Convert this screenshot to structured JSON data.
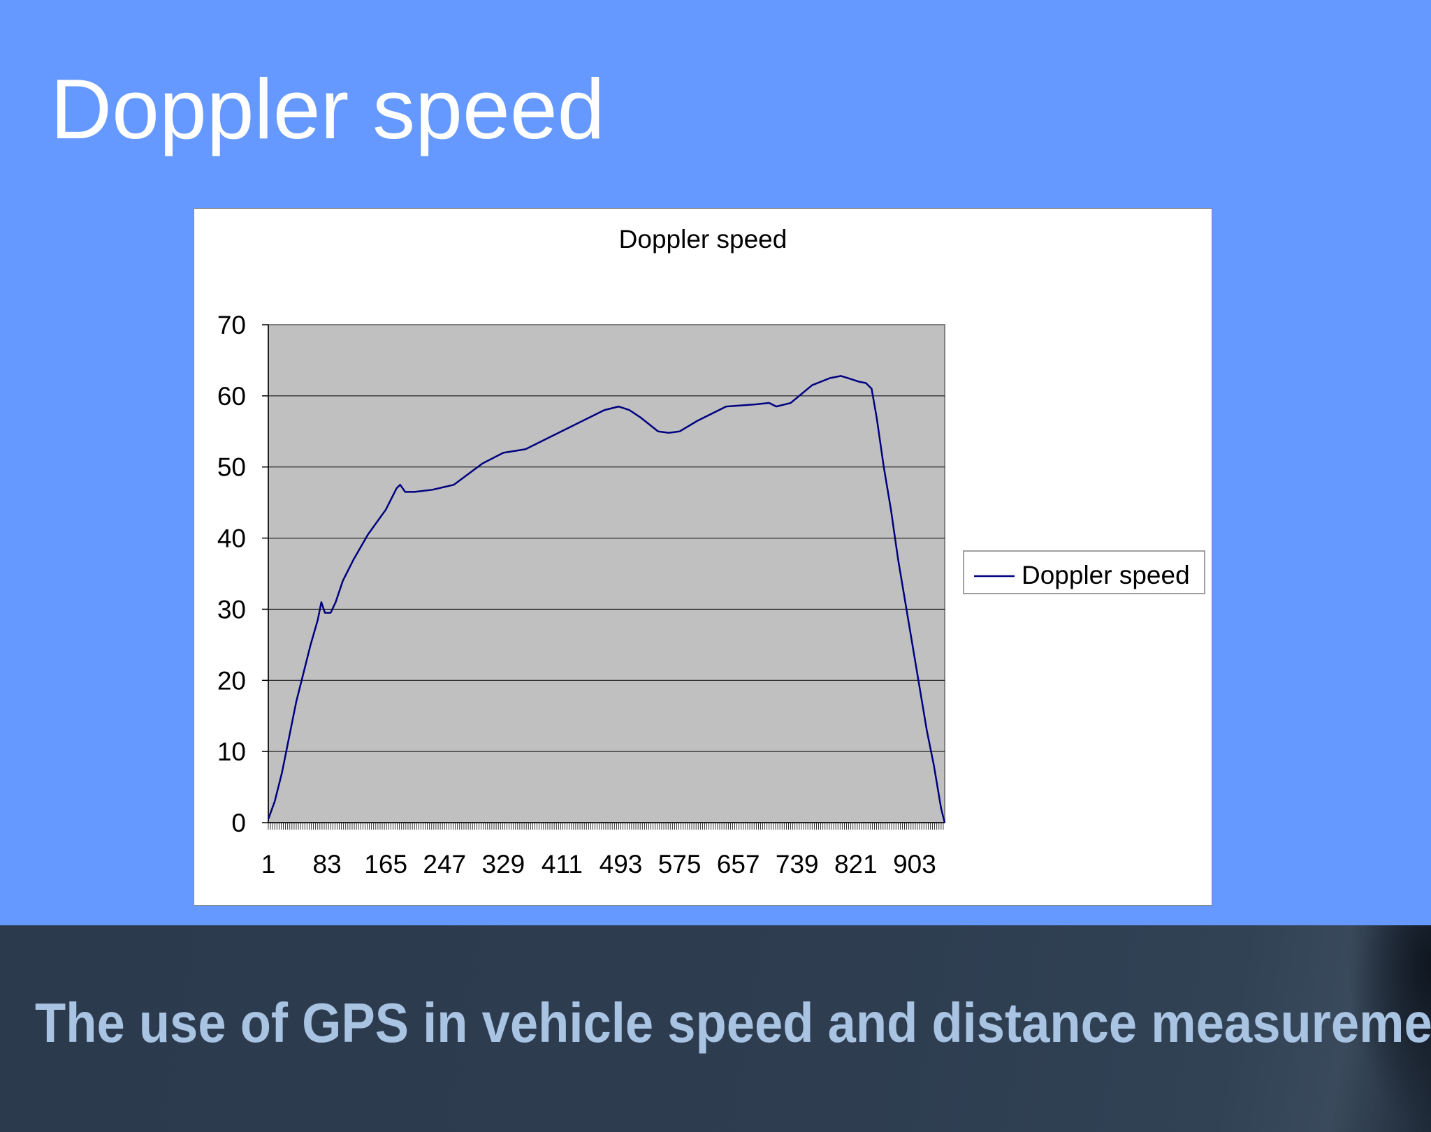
{
  "slide": {
    "title": "Doppler speed",
    "footer": "The use of GPS in vehicle speed and distance measurement",
    "background_color": "#6699ff",
    "footer_color": "#2e3d50"
  },
  "chart_data": {
    "type": "line",
    "title": "Doppler speed",
    "xlabel": "",
    "ylabel": "",
    "ylim": [
      0,
      70
    ],
    "xlim": [
      1,
      945
    ],
    "y_ticks": [
      0,
      10,
      20,
      30,
      40,
      50,
      60,
      70
    ],
    "x_tick_labels": [
      "1",
      "83",
      "165",
      "247",
      "329",
      "411",
      "493",
      "575",
      "657",
      "739",
      "821",
      "903"
    ],
    "grid": "horizontal",
    "plot_background": "#c0c0c0",
    "legend": {
      "position": "right",
      "entries": [
        "Doppler speed"
      ]
    },
    "series": [
      {
        "name": "Doppler speed",
        "color": "#000080",
        "points": [
          [
            1,
            0.5
          ],
          [
            10,
            3
          ],
          [
            20,
            7
          ],
          [
            30,
            12
          ],
          [
            40,
            17
          ],
          [
            50,
            21
          ],
          [
            60,
            25
          ],
          [
            70,
            28.5
          ],
          [
            75,
            31
          ],
          [
            80,
            29.5
          ],
          [
            88,
            29.5
          ],
          [
            95,
            31
          ],
          [
            105,
            34
          ],
          [
            120,
            37
          ],
          [
            140,
            40.5
          ],
          [
            165,
            44
          ],
          [
            180,
            47
          ],
          [
            185,
            47.5
          ],
          [
            192,
            46.5
          ],
          [
            205,
            46.5
          ],
          [
            230,
            46.8
          ],
          [
            260,
            47.5
          ],
          [
            300,
            50.5
          ],
          [
            329,
            52
          ],
          [
            360,
            52.5
          ],
          [
            400,
            54.5
          ],
          [
            440,
            56.5
          ],
          [
            470,
            58
          ],
          [
            490,
            58.5
          ],
          [
            505,
            58
          ],
          [
            520,
            57
          ],
          [
            545,
            55
          ],
          [
            560,
            54.8
          ],
          [
            575,
            55
          ],
          [
            600,
            56.5
          ],
          [
            640,
            58.5
          ],
          [
            680,
            58.8
          ],
          [
            700,
            59
          ],
          [
            710,
            58.5
          ],
          [
            730,
            59
          ],
          [
            760,
            61.5
          ],
          [
            785,
            62.5
          ],
          [
            800,
            62.8
          ],
          [
            810,
            62.5
          ],
          [
            825,
            62
          ],
          [
            835,
            61.8
          ],
          [
            843,
            61
          ],
          [
            850,
            57
          ],
          [
            860,
            50
          ],
          [
            870,
            44
          ],
          [
            880,
            37
          ],
          [
            890,
            31
          ],
          [
            900,
            25
          ],
          [
            910,
            19
          ],
          [
            920,
            13
          ],
          [
            930,
            8
          ],
          [
            940,
            2
          ],
          [
            945,
            0
          ]
        ]
      }
    ]
  }
}
